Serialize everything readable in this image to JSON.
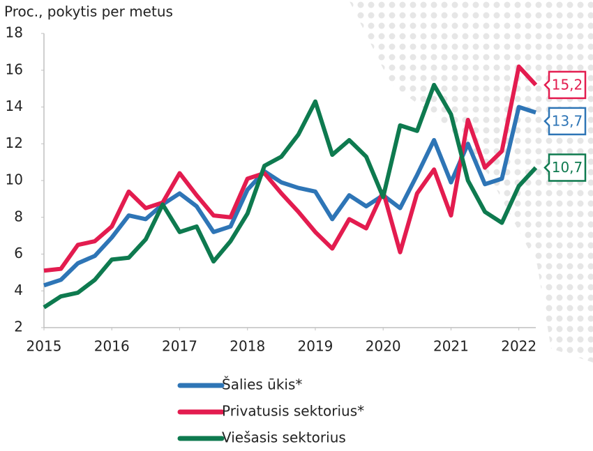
{
  "chart_data": {
    "type": "line",
    "title": "Proc., pokytis per metus",
    "x": [
      2015,
      2015.25,
      2015.5,
      2015.75,
      2016,
      2016.25,
      2016.5,
      2016.75,
      2017,
      2017.25,
      2017.5,
      2017.75,
      2018,
      2018.25,
      2018.5,
      2018.75,
      2019,
      2019.25,
      2019.5,
      2019.75,
      2020,
      2020.25,
      2020.5,
      2020.75,
      2021,
      2021.25,
      2021.5,
      2021.75,
      2022,
      2022.25
    ],
    "xlim": [
      2015,
      2022.25
    ],
    "xticks": [
      2015,
      2016,
      2017,
      2018,
      2019,
      2020,
      2021,
      2022
    ],
    "ylim": [
      2,
      18
    ],
    "yticks": [
      2,
      4,
      6,
      8,
      10,
      12,
      14,
      16,
      18
    ],
    "legend": "bottom",
    "series": [
      {
        "name": "Šalies ūkis*",
        "color": "#2e75b6",
        "values": [
          4.3,
          4.6,
          5.5,
          5.9,
          6.9,
          8.1,
          7.9,
          8.7,
          9.3,
          8.6,
          7.2,
          7.5,
          9.5,
          10.5,
          9.9,
          9.6,
          9.4,
          7.9,
          9.2,
          8.6,
          9.2,
          8.5,
          10.3,
          12.2,
          9.9,
          12.0,
          9.8,
          10.1,
          14.0,
          13.7
        ],
        "value_labels": [
          null,
          null,
          null,
          null,
          null,
          null,
          null,
          null,
          null,
          null,
          null,
          null,
          null,
          null,
          null,
          null,
          null,
          null,
          null,
          null,
          null,
          null,
          null,
          null,
          null,
          null,
          null,
          null,
          null,
          "13,7"
        ]
      },
      {
        "name": "Privatusis sektorius*",
        "color": "#e31c4f",
        "values": [
          5.1,
          5.2,
          6.5,
          6.7,
          7.5,
          9.4,
          8.5,
          8.8,
          10.4,
          9.2,
          8.1,
          8.0,
          10.1,
          10.4,
          9.3,
          8.3,
          7.2,
          6.3,
          7.9,
          7.4,
          9.4,
          6.1,
          9.3,
          10.6,
          8.1,
          13.3,
          10.7,
          11.6,
          16.2,
          15.2
        ],
        "value_labels": [
          null,
          null,
          null,
          null,
          null,
          null,
          null,
          null,
          null,
          null,
          null,
          null,
          null,
          null,
          null,
          null,
          null,
          null,
          null,
          null,
          null,
          null,
          null,
          null,
          null,
          null,
          null,
          null,
          null,
          "15,2"
        ]
      },
      {
        "name": "Viešasis sektorius",
        "color": "#0e7a4f",
        "values": [
          3.1,
          3.7,
          3.9,
          4.6,
          5.7,
          5.8,
          6.8,
          8.7,
          7.2,
          7.5,
          5.6,
          6.7,
          8.2,
          10.8,
          11.3,
          12.5,
          14.3,
          11.4,
          12.2,
          11.3,
          9.1,
          13.0,
          12.7,
          15.2,
          13.6,
          10.0,
          8.3,
          7.7,
          9.7,
          10.7
        ],
        "value_labels": [
          null,
          null,
          null,
          null,
          null,
          null,
          null,
          null,
          null,
          null,
          null,
          null,
          null,
          null,
          null,
          null,
          null,
          null,
          null,
          null,
          null,
          null,
          null,
          null,
          null,
          null,
          null,
          null,
          null,
          "10,7"
        ]
      }
    ]
  }
}
